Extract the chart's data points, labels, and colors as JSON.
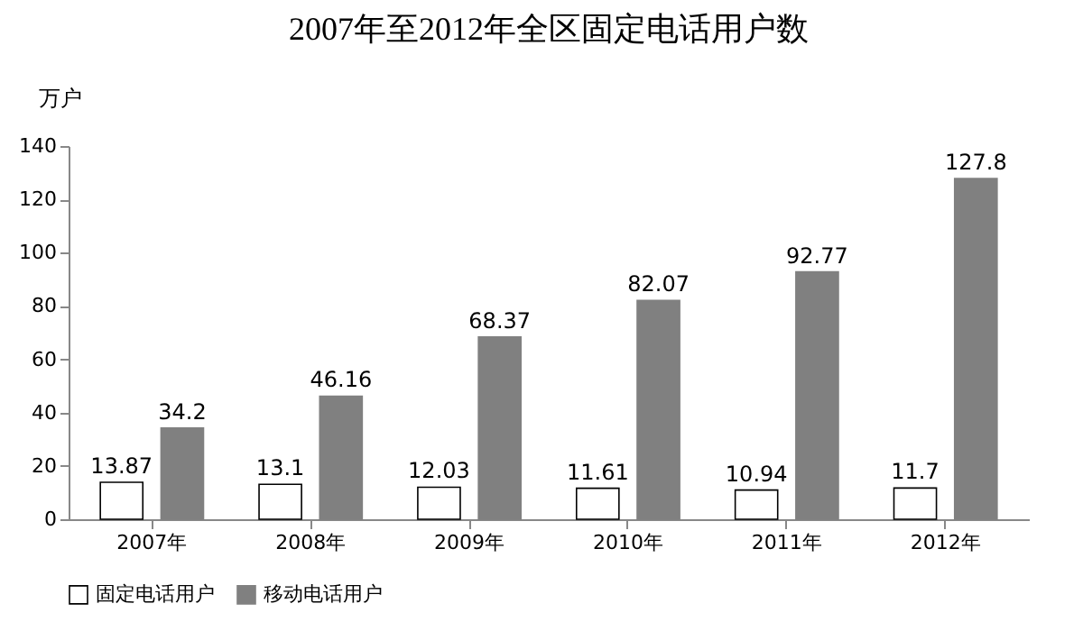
{
  "chart_data": {
    "type": "bar",
    "title": "2007年至2012年全区固定电话用户数",
    "ylabel": "万户",
    "categories": [
      "2007年",
      "2008年",
      "2009年",
      "2010年",
      "2011年",
      "2012年"
    ],
    "series": [
      {
        "name": "固定电话用户",
        "color": "#ffffff",
        "values": [
          13.87,
          13.1,
          12.03,
          11.61,
          10.94,
          11.7
        ]
      },
      {
        "name": "移动电话用户",
        "color": "#808080",
        "values": [
          34.2,
          46.16,
          68.37,
          82.07,
          92.77,
          127.8
        ]
      }
    ],
    "ylim": [
      0,
      140
    ],
    "yticks": [
      0,
      20,
      40,
      60,
      80,
      100,
      120,
      140
    ],
    "grid": false,
    "legend": "bottom",
    "data_labels": true
  }
}
